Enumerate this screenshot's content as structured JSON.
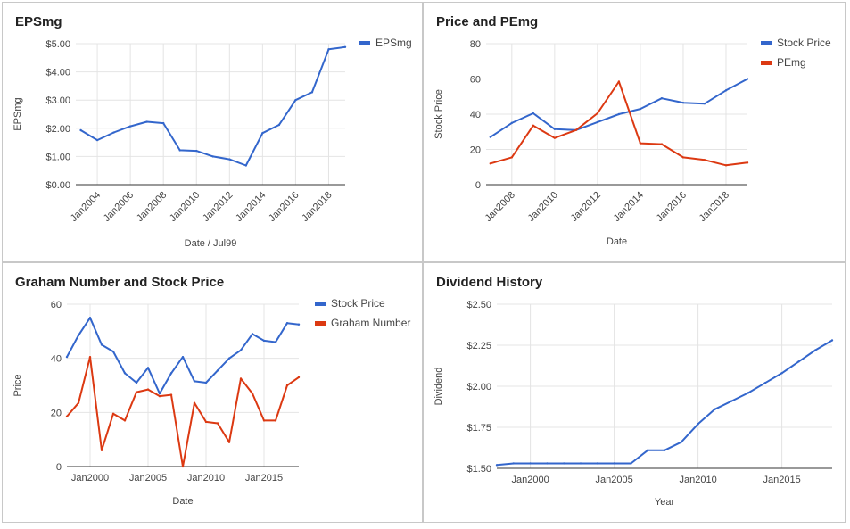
{
  "colors": {
    "blue": "#3366cc",
    "red": "#dc3912"
  },
  "chart_data": [
    {
      "type": "line",
      "title": "EPSmg",
      "xlabel": "Date / Jul99",
      "ylabel": "EPSmg",
      "x": [
        2003,
        2004,
        2005,
        2006,
        2007,
        2008,
        2009,
        2010,
        2011,
        2012,
        2013,
        2014,
        2015,
        2016,
        2017,
        2018,
        2019
      ],
      "xlim": [
        2002.7,
        2019
      ],
      "x_ticks": [
        2004,
        2006,
        2008,
        2010,
        2012,
        2014,
        2016,
        2018
      ],
      "x_tick_labels": [
        "Jan2004",
        "Jan2006",
        "Jan2008",
        "Jan2010",
        "Jan2012",
        "Jan2014",
        "Jan2016",
        "Jan2018"
      ],
      "ylim": [
        0,
        5
      ],
      "y_ticks": [
        0,
        1,
        2,
        3,
        4,
        5
      ],
      "y_tick_labels": [
        "$0.00",
        "$1.00",
        "$2.00",
        "$3.00",
        "$4.00",
        "$5.00"
      ],
      "legend_position": "right",
      "series": [
        {
          "name": "EPSmg",
          "color": "#3366cc",
          "values": [
            1.93,
            1.58,
            1.85,
            2.07,
            2.23,
            2.18,
            1.22,
            1.2,
            1.0,
            0.9,
            0.68,
            1.83,
            2.12,
            3.0,
            3.28,
            4.8,
            4.88
          ]
        }
      ]
    },
    {
      "type": "line",
      "title": "Price and PEmg",
      "xlabel": "Date",
      "ylabel": "Stock Price",
      "x": [
        2007,
        2008,
        2009,
        2010,
        2011,
        2012,
        2013,
        2014,
        2015,
        2016,
        2017,
        2018,
        2019
      ],
      "xlim": [
        2006.8,
        2019
      ],
      "x_ticks": [
        2008,
        2010,
        2012,
        2014,
        2016,
        2018
      ],
      "x_tick_labels": [
        "Jan2008",
        "Jan2010",
        "Jan2012",
        "Jan2014",
        "Jan2016",
        "Jan2018"
      ],
      "ylim": [
        0,
        80
      ],
      "y_ticks": [
        0,
        20,
        40,
        60,
        80
      ],
      "y_tick_labels": [
        "0",
        "20",
        "40",
        "60",
        "80"
      ],
      "legend_position": "right",
      "series": [
        {
          "name": "Stock Price",
          "color": "#3366cc",
          "values": [
            27,
            35,
            40.5,
            31.5,
            31,
            35.5,
            40,
            43,
            49,
            46.5,
            46,
            53.5,
            60
          ]
        },
        {
          "name": "PEmg",
          "color": "#dc3912",
          "values": [
            12,
            15.5,
            33.5,
            26.5,
            31,
            40.5,
            58.5,
            23.5,
            23,
            15.5,
            14,
            11,
            12.5
          ]
        }
      ]
    },
    {
      "type": "line",
      "title": "Graham Number and Stock Price",
      "xlabel": "Date",
      "ylabel": "Price",
      "x": [
        1998,
        1999,
        2000,
        2001,
        2002,
        2003,
        2004,
        2005,
        2006,
        2007,
        2008,
        2009,
        2010,
        2011,
        2012,
        2013,
        2014,
        2015,
        2016,
        2017,
        2018
      ],
      "xlim": [
        1998,
        2018
      ],
      "x_ticks": [
        2000,
        2005,
        2010,
        2015
      ],
      "x_tick_labels": [
        "Jan2000",
        "Jan2005",
        "Jan2010",
        "Jan2015"
      ],
      "ylim": [
        0,
        60
      ],
      "y_ticks": [
        0,
        20,
        40,
        60
      ],
      "y_tick_labels": [
        "0",
        "20",
        "40",
        "60"
      ],
      "legend_position": "right",
      "series": [
        {
          "name": "Stock Price",
          "color": "#3366cc",
          "values": [
            40.5,
            48.5,
            55,
            45,
            42.5,
            34.5,
            31,
            36.5,
            27,
            34.5,
            40.5,
            31.5,
            31,
            35.5,
            40,
            43,
            49,
            46.5,
            46,
            53,
            52.5
          ]
        },
        {
          "name": "Graham Number",
          "color": "#dc3912",
          "values": [
            18.5,
            23.5,
            40.5,
            6,
            19.5,
            17,
            27.5,
            28.5,
            26,
            26.5,
            0,
            23.5,
            16.5,
            16,
            9,
            32.5,
            27,
            17,
            17,
            30,
            33
          ]
        }
      ]
    },
    {
      "type": "line",
      "title": "Dividend History",
      "xlabel": "Year",
      "ylabel": "Dividend",
      "x": [
        1998,
        1999,
        2000,
        2001,
        2002,
        2003,
        2004,
        2005,
        2006,
        2007,
        2008,
        2009,
        2010,
        2011,
        2012,
        2013,
        2014,
        2015,
        2016,
        2017,
        2018
      ],
      "xlim": [
        1998,
        2018
      ],
      "x_ticks": [
        2000,
        2005,
        2010,
        2015
      ],
      "x_tick_labels": [
        "Jan2000",
        "Jan2005",
        "Jan2010",
        "Jan2015"
      ],
      "ylim": [
        1.5,
        2.5
      ],
      "y_ticks": [
        1.5,
        1.75,
        2.0,
        2.25,
        2.5
      ],
      "y_tick_labels": [
        "$1.50",
        "$1.75",
        "$2.00",
        "$2.25",
        "$2.50"
      ],
      "legend_position": "none",
      "series": [
        {
          "name": "",
          "color": "#3366cc",
          "values": [
            1.52,
            1.53,
            1.53,
            1.53,
            1.53,
            1.53,
            1.53,
            1.53,
            1.53,
            1.61,
            1.61,
            1.66,
            1.77,
            1.86,
            1.91,
            1.96,
            2.02,
            2.08,
            2.15,
            2.22,
            2.28
          ]
        }
      ]
    }
  ]
}
